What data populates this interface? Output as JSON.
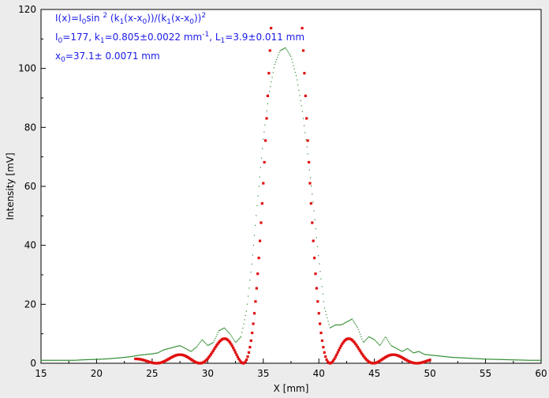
{
  "chart_data": {
    "type": "scatter",
    "xlabel": "X [mm]",
    "ylabel": "Intensity [mV]",
    "xlim": [
      15,
      60
    ],
    "ylim": [
      0,
      120
    ],
    "xticks": [
      15,
      20,
      25,
      30,
      35,
      40,
      45,
      50,
      55,
      60
    ],
    "yticks": [
      0,
      20,
      40,
      60,
      80,
      100,
      120
    ],
    "grid": false,
    "annotations": {
      "line1": [
        "I(x)=I",
        "0",
        "sin ",
        "2",
        " (k",
        "1",
        "(x-x",
        "0",
        "))/(k",
        "1",
        "(x-x",
        "0",
        "))",
        "2"
      ],
      "line2": [
        "I",
        "0",
        "=177,  k",
        "1",
        "=0.805±0.0022 mm",
        "-1",
        ",   L",
        "1",
        "=3.9±0.011 mm"
      ],
      "line3": [
        "x",
        "0",
        "=37.1±  0.0071 mm"
      ]
    },
    "fit": {
      "I0": 177,
      "k1": 0.805,
      "x0": 37.1,
      "x_range": [
        23.5,
        50
      ]
    },
    "series": [
      {
        "kind": "measured",
        "color": "#2a8a2a",
        "x": [
          15,
          16,
          17,
          18,
          19,
          20,
          21,
          22,
          23,
          24,
          25,
          25.5,
          26,
          26.5,
          27,
          27.5,
          28,
          28.5,
          29,
          29.5,
          30,
          30.5,
          31,
          31.5,
          32,
          32.5,
          33,
          33.5,
          34,
          34.5,
          35,
          35.5,
          36,
          36.5,
          37,
          37.5,
          38,
          38.5,
          39,
          39.5,
          40,
          40.5,
          41,
          41.5,
          42,
          42.5,
          43,
          43.5,
          44,
          44.5,
          45,
          45.5,
          46,
          46.5,
          47,
          47.5,
          48,
          48.5,
          49,
          49.5,
          50,
          51,
          52,
          53,
          54,
          55,
          56,
          57,
          58,
          59,
          60
        ],
        "y": [
          1,
          1,
          1,
          1,
          1.2,
          1.3,
          1.5,
          1.8,
          2.2,
          2.8,
          3.2,
          3.5,
          4.5,
          5,
          5.5,
          6,
          5,
          4,
          5.5,
          8,
          6,
          7,
          11,
          12,
          10,
          7,
          9,
          18,
          35,
          56,
          76,
          91,
          101,
          106,
          107,
          104,
          97,
          86,
          71,
          54,
          35,
          19,
          12,
          13,
          13,
          14,
          15,
          12,
          7,
          9,
          8,
          6,
          9,
          6,
          5,
          4,
          5,
          3.5,
          4,
          3,
          2.8,
          2.4,
          2,
          1.8,
          1.6,
          1.4,
          1.3,
          1.2,
          1.1,
          1,
          1
        ]
      }
    ]
  }
}
